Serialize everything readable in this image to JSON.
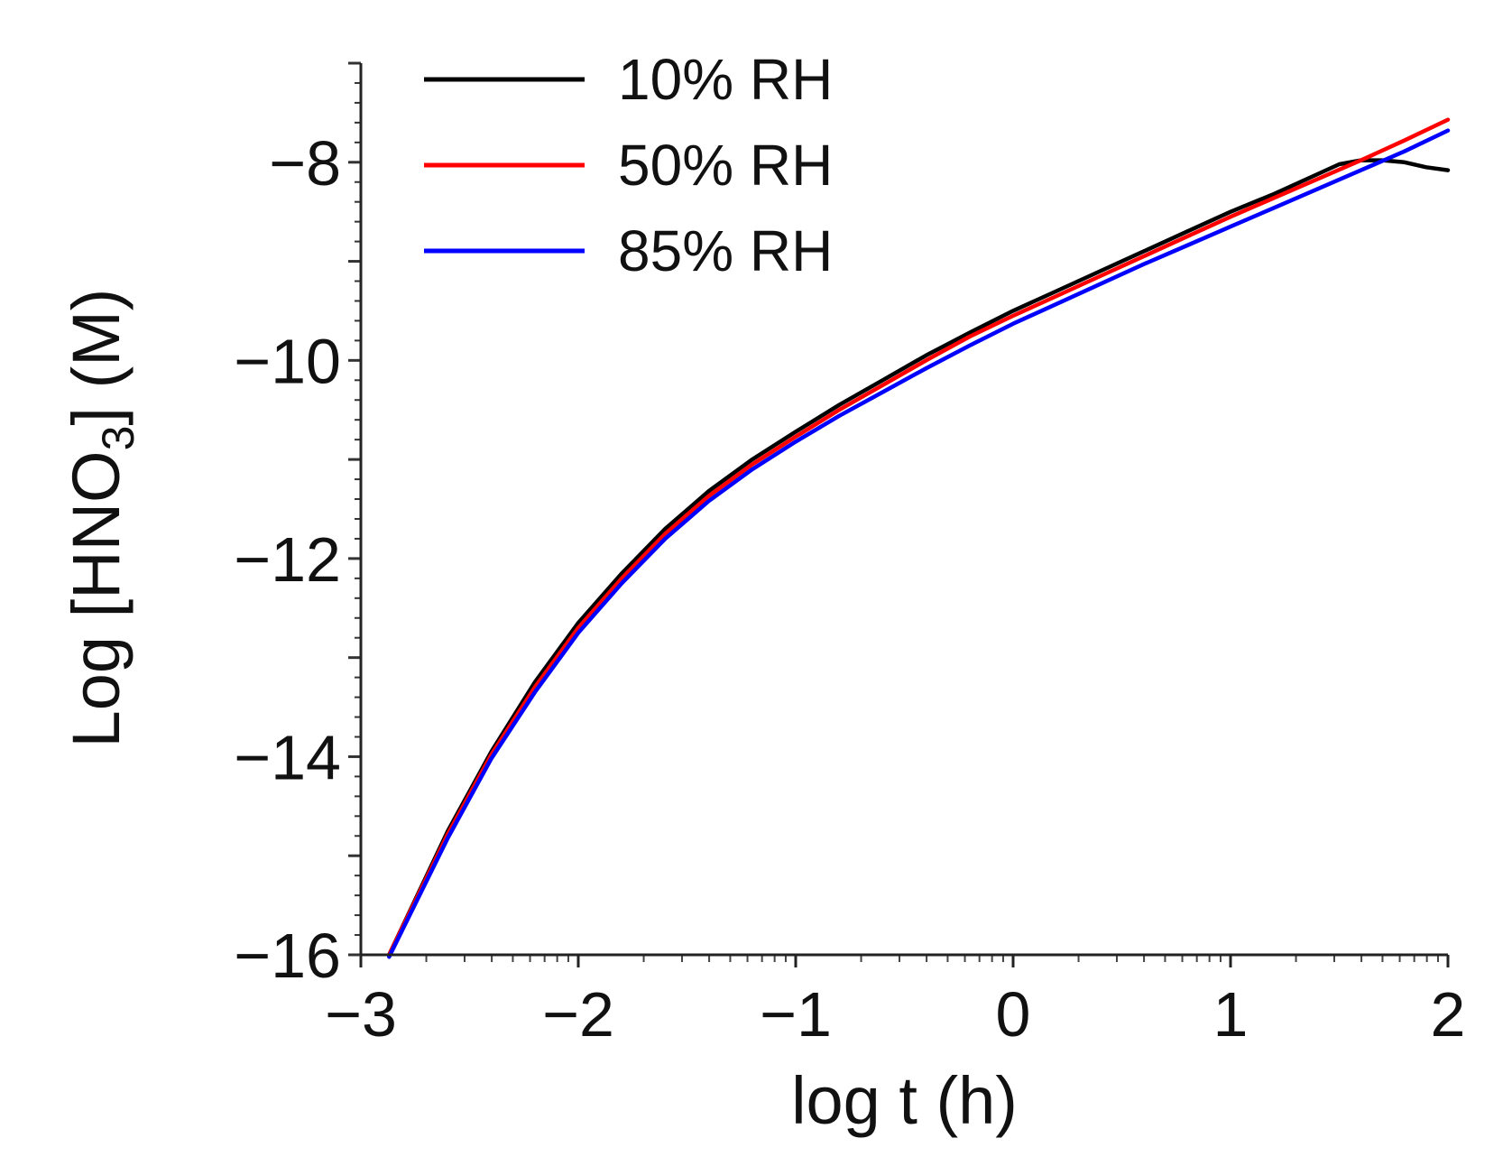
{
  "chart_data": {
    "type": "line",
    "xlabel": "log t (h)",
    "ylabel_parts": {
      "before": "Log [HNO",
      "subscript": "3",
      "after": "] (M)"
    },
    "xlim": [
      -3,
      2
    ],
    "ylim": [
      -16,
      -7
    ],
    "xticks": [
      -3,
      -2,
      -1,
      0,
      1,
      2
    ],
    "xtick_labels": [
      "−3",
      "−2",
      "−1",
      "0",
      "1",
      "2"
    ],
    "yticks": [
      -16,
      -14,
      -12,
      -10,
      -8
    ],
    "ytick_labels": [
      "−16",
      "−14",
      "−12",
      "−10",
      "−8"
    ],
    "legend_position": "top-left",
    "series": [
      {
        "name": "10% RH",
        "color": "#000000",
        "x": [
          -2.87,
          -2.6,
          -2.4,
          -2.2,
          -2.0,
          -1.8,
          -1.6,
          -1.4,
          -1.2,
          -1.0,
          -0.8,
          -0.6,
          -0.4,
          -0.2,
          0.0,
          0.2,
          0.4,
          0.6,
          0.8,
          1.0,
          1.2,
          1.4,
          1.5,
          1.6,
          1.7,
          1.8,
          1.9,
          2.0
        ],
        "y": [
          -16.0,
          -14.75,
          -13.95,
          -13.25,
          -12.65,
          -12.15,
          -11.7,
          -11.32,
          -11.0,
          -10.72,
          -10.45,
          -10.2,
          -9.95,
          -9.72,
          -9.5,
          -9.3,
          -9.1,
          -8.9,
          -8.7,
          -8.5,
          -8.32,
          -8.12,
          -8.02,
          -7.98,
          -7.98,
          -8.0,
          -8.05,
          -8.08
        ]
      },
      {
        "name": "50% RH",
        "color": "#ff0000",
        "x": [
          -2.87,
          -2.6,
          -2.4,
          -2.2,
          -2.0,
          -1.8,
          -1.6,
          -1.4,
          -1.2,
          -1.0,
          -0.8,
          -0.6,
          -0.4,
          -0.2,
          0.0,
          0.2,
          0.4,
          0.6,
          0.8,
          1.0,
          1.2,
          1.4,
          1.6,
          1.8,
          2.0
        ],
        "y": [
          -16.0,
          -14.78,
          -13.98,
          -13.3,
          -12.7,
          -12.2,
          -11.75,
          -11.37,
          -11.05,
          -10.77,
          -10.5,
          -10.25,
          -10.0,
          -9.76,
          -9.55,
          -9.35,
          -9.15,
          -8.95,
          -8.75,
          -8.55,
          -8.36,
          -8.17,
          -7.98,
          -7.78,
          -7.57
        ]
      },
      {
        "name": "85% RH",
        "color": "#0000ff",
        "x": [
          -2.87,
          -2.6,
          -2.4,
          -2.2,
          -2.0,
          -1.8,
          -1.6,
          -1.4,
          -1.2,
          -1.0,
          -0.8,
          -0.6,
          -0.4,
          -0.2,
          0.0,
          0.2,
          0.4,
          0.6,
          0.8,
          1.0,
          1.2,
          1.4,
          1.6,
          1.8,
          2.0
        ],
        "y": [
          -16.02,
          -14.82,
          -14.02,
          -13.35,
          -12.75,
          -12.25,
          -11.8,
          -11.42,
          -11.1,
          -10.82,
          -10.56,
          -10.32,
          -10.08,
          -9.85,
          -9.63,
          -9.43,
          -9.23,
          -9.03,
          -8.84,
          -8.65,
          -8.46,
          -8.27,
          -8.08,
          -7.89,
          -7.68
        ]
      }
    ]
  }
}
